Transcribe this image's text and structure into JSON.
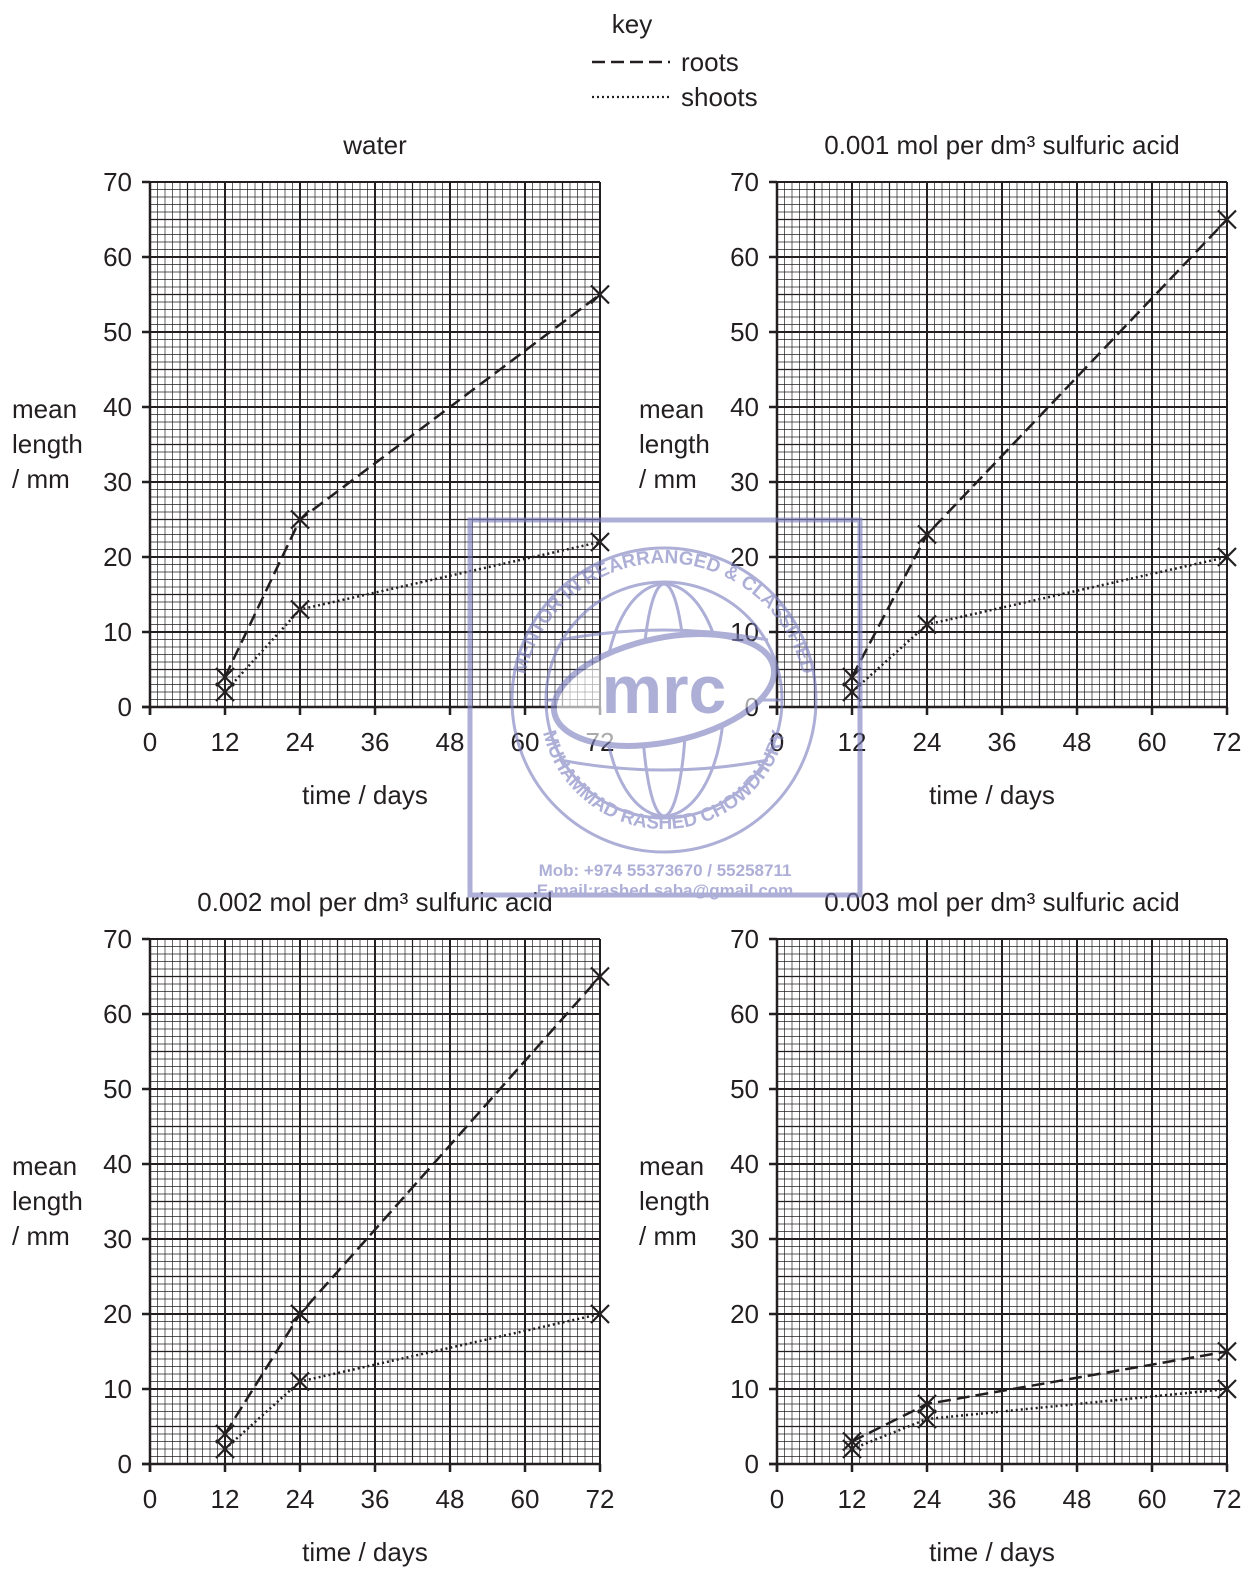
{
  "key": {
    "title": "key",
    "roots_label": "roots",
    "shoots_label": "shoots"
  },
  "watermark": {
    "logo_text": "mrc",
    "ring_top": "MENTOR IN REARRANGED & CLASSIFIED",
    "ring_bottom": "MUHAMMAD RASHED CHOWDHURY",
    "mobile": "Mob:  +974 55373670 / 55258711",
    "email": "E-mail:rashed.saba@gmail.com",
    "color": "#7c7fc0"
  },
  "colors": {
    "ink": "#231f20",
    "grid": "#231f20"
  },
  "chart_data": [
    {
      "type": "line",
      "title": "water",
      "xlabel": "time / days",
      "ylabel": [
        "mean",
        "length",
        "/ mm"
      ],
      "xlim": [
        0,
        72
      ],
      "ylim": [
        0,
        70
      ],
      "xticks": [
        0,
        12,
        24,
        36,
        48,
        60,
        72
      ],
      "yticks": [
        0,
        10,
        20,
        30,
        40,
        50,
        60,
        70
      ],
      "grid": true,
      "x": [
        12,
        24,
        72
      ],
      "series": [
        {
          "name": "roots",
          "style": "dashed",
          "values": [
            4,
            25,
            55
          ]
        },
        {
          "name": "shoots",
          "style": "dotted",
          "values": [
            2,
            13,
            22
          ]
        }
      ]
    },
    {
      "type": "line",
      "title": "0.001 mol per dm³ sulfuric acid",
      "xlabel": "time / days",
      "ylabel": [
        "mean",
        "length",
        "/ mm"
      ],
      "xlim": [
        0,
        72
      ],
      "ylim": [
        0,
        70
      ],
      "xticks": [
        0,
        12,
        24,
        36,
        48,
        60,
        72
      ],
      "yticks": [
        0,
        10,
        20,
        30,
        40,
        50,
        60,
        70
      ],
      "grid": true,
      "x": [
        12,
        24,
        72
      ],
      "series": [
        {
          "name": "roots",
          "style": "dashed",
          "values": [
            4,
            23,
            65
          ]
        },
        {
          "name": "shoots",
          "style": "dotted",
          "values": [
            2,
            11,
            20
          ]
        }
      ]
    },
    {
      "type": "line",
      "title": "0.002 mol per dm³ sulfuric acid",
      "xlabel": "time / days",
      "ylabel": [
        "mean",
        "length",
        "/ mm"
      ],
      "xlim": [
        0,
        72
      ],
      "ylim": [
        0,
        70
      ],
      "xticks": [
        0,
        12,
        24,
        36,
        48,
        60,
        72
      ],
      "yticks": [
        0,
        10,
        20,
        30,
        40,
        50,
        60,
        70
      ],
      "grid": true,
      "x": [
        12,
        24,
        72
      ],
      "series": [
        {
          "name": "roots",
          "style": "dashed",
          "values": [
            4,
            20,
            65
          ]
        },
        {
          "name": "shoots",
          "style": "dotted",
          "values": [
            2,
            11,
            20
          ]
        }
      ]
    },
    {
      "type": "line",
      "title": "0.003 mol per dm³ sulfuric acid",
      "xlabel": "time / days",
      "ylabel": [
        "mean",
        "length",
        "/ mm"
      ],
      "xlim": [
        0,
        72
      ],
      "ylim": [
        0,
        70
      ],
      "xticks": [
        0,
        12,
        24,
        36,
        48,
        60,
        72
      ],
      "yticks": [
        0,
        10,
        20,
        30,
        40,
        50,
        60,
        70
      ],
      "grid": true,
      "x": [
        12,
        24,
        72
      ],
      "series": [
        {
          "name": "roots",
          "style": "dashed",
          "values": [
            3,
            8,
            15
          ]
        },
        {
          "name": "shoots",
          "style": "dotted",
          "values": [
            2,
            6,
            10
          ]
        }
      ]
    }
  ]
}
